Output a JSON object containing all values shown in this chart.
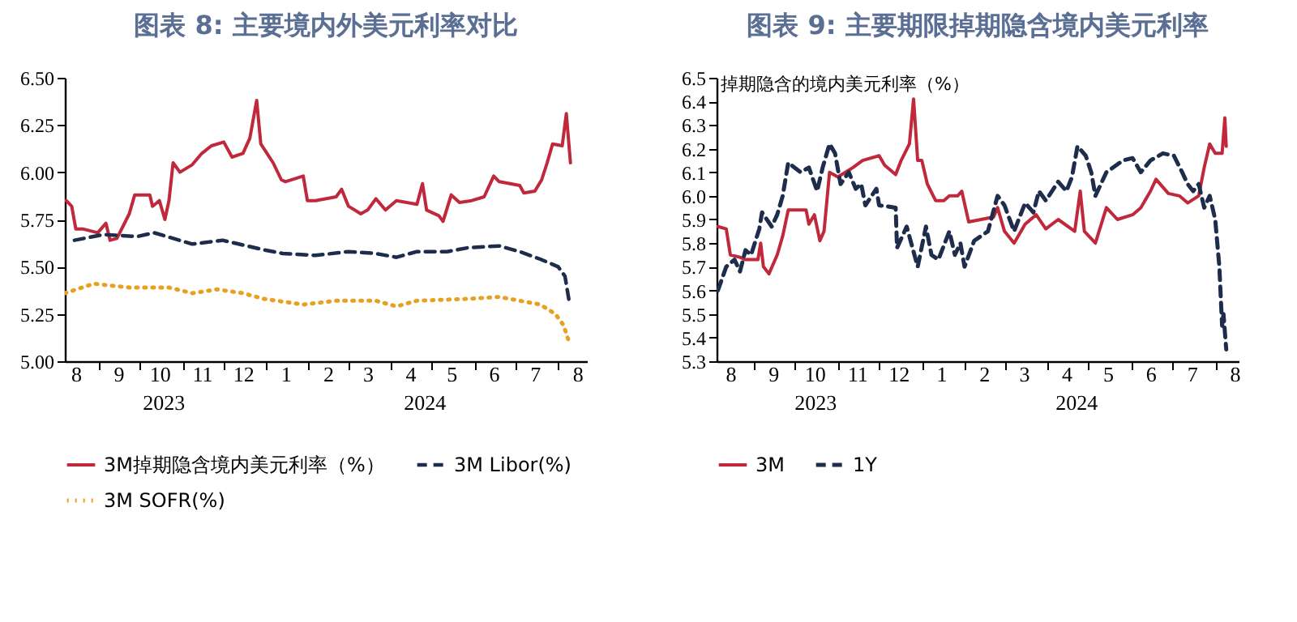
{
  "chart_data": [
    {
      "type": "line",
      "title": "图表 8: 主要境内外美元利率对比",
      "xlim": [
        "2023-08-07",
        "2024-08-22"
      ],
      "ylim": [
        5.0,
        6.5
      ],
      "yticks": [
        {
          "value": 5,
          "label": "5.00"
        },
        {
          "value": 5.25,
          "label": "5.25"
        },
        {
          "value": 5.5,
          "label": "5.50"
        },
        {
          "value": 5.75,
          "label": "5.75"
        },
        {
          "value": 6,
          "label": "6.00"
        },
        {
          "value": 6.25,
          "label": "6.25"
        },
        {
          "value": 6.5,
          "label": "6.50"
        }
      ],
      "xticks": [
        {
          "value": "2023-08-15",
          "label": "8"
        },
        {
          "value": "2023-09-01",
          "label": null
        },
        {
          "value": "2023-09-15",
          "label": "9"
        },
        {
          "value": "2023-10-01",
          "label": null
        },
        {
          "value": "2023-10-15",
          "label": "10"
        },
        {
          "value": "2023-11-01",
          "label": null
        },
        {
          "value": "2023-11-15",
          "label": "11"
        },
        {
          "value": "2023-12-01",
          "label": null
        },
        {
          "value": "2023-12-15",
          "label": "12"
        },
        {
          "value": "2024-01-01",
          "label": null
        },
        {
          "value": "2024-01-15",
          "label": "1"
        },
        {
          "value": "2024-02-01",
          "label": null
        },
        {
          "value": "2024-02-15",
          "label": "2"
        },
        {
          "value": "2024-03-01",
          "label": null
        },
        {
          "value": "2024-03-15",
          "label": "3"
        },
        {
          "value": "2024-04-01",
          "label": null
        },
        {
          "value": "2024-04-15",
          "label": "4"
        },
        {
          "value": "2024-05-01",
          "label": null
        },
        {
          "value": "2024-05-15",
          "label": "5"
        },
        {
          "value": "2024-06-01",
          "label": null
        },
        {
          "value": "2024-06-15",
          "label": "6"
        },
        {
          "value": "2024-07-01",
          "label": null
        },
        {
          "value": "2024-07-15",
          "label": "7"
        },
        {
          "value": "2024-08-01",
          "label": null
        },
        {
          "value": "2024-08-15",
          "label": "8"
        }
      ],
      "annotations": [
        "2023",
        "2024"
      ],
      "legend": "bottom",
      "grid": false,
      "marker": "none",
      "series": [
        {
          "name": "3M掉期隐含境内美元利率（%）",
          "color": "#c0283c",
          "line_style": "solid",
          "x": [
            "2023-08-08",
            "2023-08-12",
            "2023-08-15",
            "2023-08-20",
            "2023-08-31",
            "2023-09-06",
            "2023-09-09",
            "2023-09-14",
            "2023-09-23",
            "2023-09-27",
            "2023-10-08",
            "2023-10-10",
            "2023-10-15",
            "2023-10-19",
            "2023-10-22",
            "2023-10-25",
            "2023-10-30",
            "2023-11-08",
            "2023-11-15",
            "2023-11-22",
            "2023-12-01",
            "2023-12-07",
            "2023-12-15",
            "2023-12-20",
            "2023-12-25",
            "2023-12-28",
            "2024-01-06",
            "2024-01-12",
            "2024-01-15",
            "2024-01-28",
            "2024-01-31",
            "2024-02-06",
            "2024-02-21",
            "2024-02-25",
            "2024-03-01",
            "2024-03-10",
            "2024-03-15",
            "2024-03-21",
            "2024-03-28",
            "2024-04-05",
            "2024-04-20",
            "2024-04-24",
            "2024-04-27",
            "2024-05-06",
            "2024-05-09",
            "2024-05-15",
            "2024-05-21",
            "2024-05-30",
            "2024-06-08",
            "2024-06-15",
            "2024-06-19",
            "2024-07-04",
            "2024-07-07",
            "2024-07-15",
            "2024-07-20",
            "2024-07-24",
            "2024-07-28",
            "2024-08-04",
            "2024-08-07",
            "2024-08-10"
          ],
          "values": [
            5.85,
            5.82,
            5.7,
            5.7,
            5.68,
            5.73,
            5.64,
            5.65,
            5.78,
            5.88,
            5.88,
            5.82,
            5.85,
            5.75,
            5.85,
            6.05,
            6.0,
            6.04,
            6.1,
            6.14,
            6.16,
            6.08,
            6.1,
            6.18,
            6.38,
            6.15,
            6.05,
            5.96,
            5.95,
            5.98,
            5.85,
            5.85,
            5.87,
            5.91,
            5.82,
            5.78,
            5.8,
            5.86,
            5.8,
            5.85,
            5.83,
            5.94,
            5.8,
            5.77,
            5.74,
            5.88,
            5.84,
            5.85,
            5.87,
            5.98,
            5.95,
            5.93,
            5.89,
            5.9,
            5.96,
            6.05,
            6.15,
            6.14,
            6.31,
            6.05
          ]
        },
        {
          "name": "3M Libor(%)",
          "color": "#1f2d4d",
          "line_style": "dashed",
          "x": [
            "2023-08-14",
            "2023-09-04",
            "2023-09-29",
            "2023-10-11",
            "2023-11-08",
            "2023-11-30",
            "2023-12-30",
            "2024-01-13",
            "2024-02-06",
            "2024-03-01",
            "2024-03-21",
            "2024-04-05",
            "2024-04-20",
            "2024-05-12",
            "2024-05-27",
            "2024-06-19",
            "2024-07-04",
            "2024-07-19",
            "2024-08-01",
            "2024-08-06",
            "2024-08-09"
          ],
          "values": [
            5.64,
            5.67,
            5.66,
            5.68,
            5.62,
            5.64,
            5.59,
            5.57,
            5.56,
            5.58,
            5.57,
            5.55,
            5.58,
            5.58,
            5.6,
            5.61,
            5.58,
            5.54,
            5.5,
            5.45,
            5.32
          ]
        },
        {
          "name": "3M SOFR(%)",
          "color": "#e8a020",
          "line_style": "dotted",
          "x": [
            "2023-08-07",
            "2023-08-28",
            "2023-09-23",
            "2023-10-22",
            "2023-11-08",
            "2023-11-26",
            "2023-12-15",
            "2023-12-30",
            "2024-01-28",
            "2024-02-21",
            "2024-03-21",
            "2024-04-05",
            "2024-04-20",
            "2024-05-27",
            "2024-06-19",
            "2024-07-04",
            "2024-07-19",
            "2024-07-30",
            "2024-08-05",
            "2024-08-09"
          ],
          "values": [
            5.36,
            5.41,
            5.39,
            5.39,
            5.36,
            5.38,
            5.36,
            5.33,
            5.3,
            5.32,
            5.32,
            5.29,
            5.32,
            5.33,
            5.34,
            5.32,
            5.3,
            5.25,
            5.19,
            5.1
          ]
        }
      ]
    },
    {
      "type": "line",
      "title": "图表 9: 主要期限掉期隐含境内美元利率",
      "ylabel": "掉期隐含的境内美元利率（%）",
      "xlim": [
        "2023-08-05",
        "2024-08-18"
      ],
      "ylim": [
        5.3,
        6.5
      ],
      "yticks": [
        5.3,
        5.4,
        5.5,
        5.6,
        5.7,
        5.8,
        {
          "value": 5.9,
          "label": "5.9"
        },
        {
          "value": 6,
          "label": "6.0"
        },
        6.1,
        6.2,
        6.3,
        6.4,
        6.5
      ],
      "xticks": [
        {
          "value": "2023-08-15",
          "label": "8"
        },
        {
          "value": "2023-09-01",
          "label": null
        },
        {
          "value": "2023-09-15",
          "label": "9"
        },
        {
          "value": "2023-10-01",
          "label": null
        },
        {
          "value": "2023-10-15",
          "label": "10"
        },
        {
          "value": "2023-11-01",
          "label": null
        },
        {
          "value": "2023-11-15",
          "label": "11"
        },
        {
          "value": "2023-12-01",
          "label": null
        },
        {
          "value": "2023-12-15",
          "label": "12"
        },
        {
          "value": "2024-01-01",
          "label": null
        },
        {
          "value": "2024-01-15",
          "label": "1"
        },
        {
          "value": "2024-02-01",
          "label": null
        },
        {
          "value": "2024-02-15",
          "label": "2"
        },
        {
          "value": "2024-03-01",
          "label": null
        },
        {
          "value": "2024-03-15",
          "label": "3"
        },
        {
          "value": "2024-04-01",
          "label": null
        },
        {
          "value": "2024-04-15",
          "label": "4"
        },
        {
          "value": "2024-05-01",
          "label": null
        },
        {
          "value": "2024-05-15",
          "label": "5"
        },
        {
          "value": "2024-06-01",
          "label": null
        },
        {
          "value": "2024-06-15",
          "label": "6"
        },
        {
          "value": "2024-07-01",
          "label": null
        },
        {
          "value": "2024-07-15",
          "label": "7"
        },
        {
          "value": "2024-08-01",
          "label": null
        },
        {
          "value": "2024-08-15",
          "label": "8"
        }
      ],
      "annotations": [
        "2023",
        "2024"
      ],
      "legend": "bottom",
      "grid": false,
      "marker": "none",
      "series": [
        {
          "name": "3M",
          "color": "#c0283c",
          "line_style": "solid",
          "x": [
            "2023-08-06",
            "2023-08-12",
            "2023-08-15",
            "2023-08-22",
            "2023-08-26",
            "2023-09-04",
            "2023-09-06",
            "2023-09-08",
            "2023-09-12",
            "2023-09-18",
            "2023-09-22",
            "2023-09-26",
            "2023-10-09",
            "2023-10-11",
            "2023-10-15",
            "2023-10-19",
            "2023-10-22",
            "2023-10-26",
            "2023-11-01",
            "2023-11-12",
            "2023-11-19",
            "2023-12-01",
            "2023-12-05",
            "2023-12-13",
            "2023-12-17",
            "2023-12-23",
            "2023-12-26",
            "2023-12-29",
            "2024-01-01",
            "2024-01-05",
            "2024-01-11",
            "2024-01-17",
            "2024-01-21",
            "2024-01-27",
            "2024-01-30",
            "2024-02-04",
            "2024-02-22",
            "2024-02-25",
            "2024-03-01",
            "2024-03-08",
            "2024-03-16",
            "2024-03-24",
            "2024-03-31",
            "2024-04-09",
            "2024-04-21",
            "2024-04-25",
            "2024-04-28",
            "2024-05-06",
            "2024-05-14",
            "2024-05-22",
            "2024-06-02",
            "2024-06-08",
            "2024-06-15",
            "2024-06-19",
            "2024-06-28",
            "2024-07-06",
            "2024-07-12",
            "2024-07-20",
            "2024-07-24",
            "2024-07-28",
            "2024-08-01",
            "2024-08-06",
            "2024-08-08",
            "2024-08-09"
          ],
          "values": [
            5.87,
            5.86,
            5.75,
            5.74,
            5.73,
            5.73,
            5.8,
            5.7,
            5.67,
            5.75,
            5.83,
            5.94,
            5.94,
            5.88,
            5.92,
            5.81,
            5.85,
            6.1,
            6.08,
            6.12,
            6.15,
            6.17,
            6.13,
            6.09,
            6.15,
            6.22,
            6.41,
            6.15,
            6.15,
            6.05,
            5.98,
            5.98,
            6.0,
            6.0,
            6.02,
            5.89,
            5.91,
            5.95,
            5.85,
            5.8,
            5.88,
            5.92,
            5.86,
            5.9,
            5.85,
            6.02,
            5.85,
            5.8,
            5.95,
            5.9,
            5.92,
            5.95,
            6.02,
            6.07,
            6.01,
            6.0,
            5.97,
            6.0,
            6.12,
            6.22,
            6.18,
            6.18,
            6.33,
            6.21
          ]
        },
        {
          "name": "1Y",
          "color": "#1f2d4d",
          "line_style": "dashed",
          "x": [
            "2023-08-06",
            "2023-08-12",
            "2023-08-18",
            "2023-08-22",
            "2023-08-26",
            "2023-08-30",
            "2023-09-05",
            "2023-09-07",
            "2023-09-14",
            "2023-09-18",
            "2023-09-22",
            "2023-09-26",
            "2023-10-05",
            "2023-10-11",
            "2023-10-17",
            "2023-10-21",
            "2023-10-26",
            "2023-10-30",
            "2023-11-03",
            "2023-11-09",
            "2023-11-14",
            "2023-11-18",
            "2023-11-21",
            "2023-11-29",
            "2023-12-01",
            "2023-12-13",
            "2023-12-14",
            "2023-12-21",
            "2023-12-29",
            "2024-01-04",
            "2024-01-08",
            "2024-01-13",
            "2024-01-21",
            "2024-01-25",
            "2024-01-29",
            "2024-02-01",
            "2024-02-08",
            "2024-02-18",
            "2024-02-25",
            "2024-03-01",
            "2024-03-08",
            "2024-03-16",
            "2024-03-22",
            "2024-03-26",
            "2024-03-31",
            "2024-04-09",
            "2024-04-15",
            "2024-04-19",
            "2024-04-23",
            "2024-04-29",
            "2024-05-03",
            "2024-05-06",
            "2024-05-10",
            "2024-05-14",
            "2024-05-26",
            "2024-06-02",
            "2024-06-08",
            "2024-06-15",
            "2024-06-24",
            "2024-07-02",
            "2024-07-08",
            "2024-07-12",
            "2024-07-16",
            "2024-07-20",
            "2024-07-24",
            "2024-07-28",
            "2024-08-01",
            "2024-08-04",
            "2024-08-06",
            "2024-08-07",
            "2024-08-09"
          ],
          "values": [
            5.6,
            5.7,
            5.73,
            5.68,
            5.77,
            5.75,
            5.86,
            5.93,
            5.87,
            5.92,
            6.0,
            6.14,
            6.1,
            6.12,
            6.02,
            6.12,
            6.22,
            6.18,
            6.05,
            6.1,
            6.03,
            6.05,
            5.96,
            6.03,
            5.96,
            5.95,
            5.78,
            5.87,
            5.7,
            5.87,
            5.75,
            5.73,
            5.85,
            5.75,
            5.8,
            5.7,
            5.81,
            5.85,
            6.0,
            5.96,
            5.85,
            5.97,
            5.93,
            6.02,
            5.98,
            6.06,
            6.02,
            6.08,
            6.21,
            6.17,
            6.1,
            6.0,
            6.05,
            6.1,
            6.15,
            6.16,
            6.1,
            6.15,
            6.18,
            6.17,
            6.1,
            6.05,
            6.02,
            6.05,
            5.95,
            6.0,
            5.9,
            5.7,
            5.45,
            5.5,
            5.35
          ]
        }
      ]
    }
  ]
}
